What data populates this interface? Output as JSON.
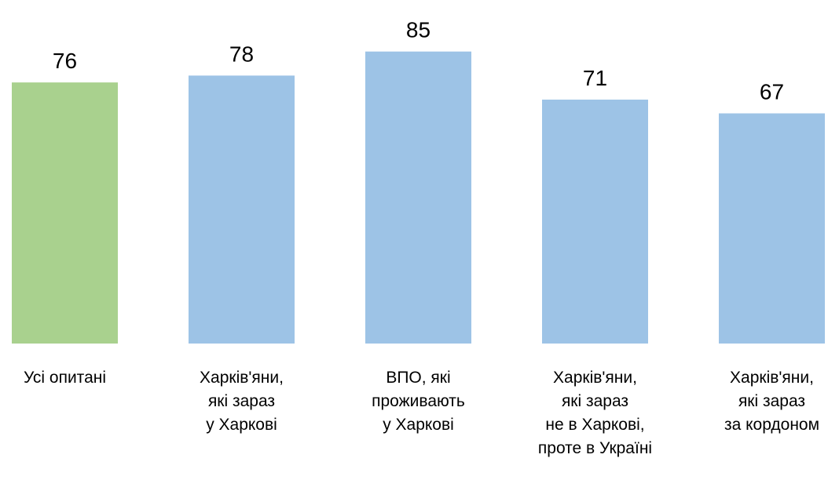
{
  "chart_data": {
    "type": "bar",
    "categories": [
      [
        "Усі опитані"
      ],
      [
        "Харків'яни,",
        "які зараз",
        "у Харкові"
      ],
      [
        "ВПО, які",
        "проживають",
        "у Харкові"
      ],
      [
        "Харків'яни,",
        "які зараз",
        "не в Харкові,",
        "проте в Україні"
      ],
      [
        "Харків'яни,",
        "які зараз",
        "за кордоном"
      ]
    ],
    "values": [
      76,
      78,
      85,
      71,
      67
    ],
    "colors": [
      "#a9d18e",
      "#9dc3e6",
      "#9dc3e6",
      "#9dc3e6",
      "#9dc3e6"
    ]
  }
}
